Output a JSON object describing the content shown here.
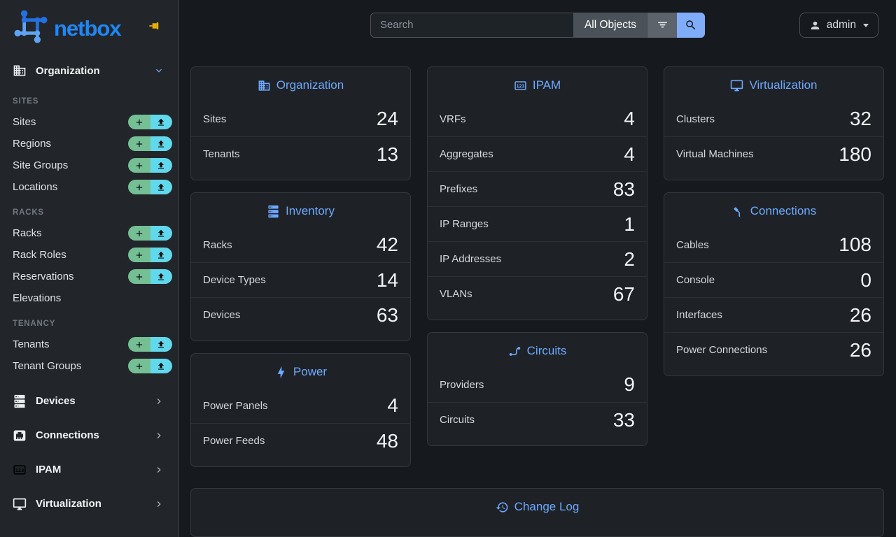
{
  "colors": {
    "accent_blue": "#6ea8fe",
    "brand_blue": "#1f87f5",
    "success_green": "#74bf93",
    "info_cyan": "#61d8ec",
    "pin_gold": "#e8b006",
    "search_button_blue": "#7fadf9"
  },
  "brand": {
    "logo_text": "netbox"
  },
  "topbar": {
    "search_placeholder": "Search",
    "scope_label": "All Objects",
    "user_label": "admin"
  },
  "sidebar": {
    "primary_menu": {
      "label": "Organization",
      "icon": "building",
      "state": "expanded"
    },
    "sections": [
      {
        "heading": "SITES",
        "items": [
          {
            "label": "Sites",
            "actions": true
          },
          {
            "label": "Regions",
            "actions": true
          },
          {
            "label": "Site Groups",
            "actions": true
          },
          {
            "label": "Locations",
            "actions": true
          }
        ]
      },
      {
        "heading": "RACKS",
        "items": [
          {
            "label": "Racks",
            "actions": true
          },
          {
            "label": "Rack Roles",
            "actions": true
          },
          {
            "label": "Reservations",
            "actions": true
          },
          {
            "label": "Elevations",
            "actions": false
          }
        ]
      },
      {
        "heading": "TENANCY",
        "items": [
          {
            "label": "Tenants",
            "actions": true
          },
          {
            "label": "Tenant Groups",
            "actions": true
          }
        ]
      }
    ],
    "collapsed_menus": [
      {
        "label": "Devices",
        "icon": "server"
      },
      {
        "label": "Connections",
        "icon": "ethernet"
      },
      {
        "label": "IPAM",
        "icon": "counter"
      },
      {
        "label": "Virtualization",
        "icon": "monitor"
      }
    ]
  },
  "dashboard": {
    "columns": [
      [
        {
          "title": "Organization",
          "icon": "building",
          "rows": [
            {
              "label": "Sites",
              "value": "24"
            },
            {
              "label": "Tenants",
              "value": "13"
            }
          ]
        },
        {
          "title": "Inventory",
          "icon": "server",
          "rows": [
            {
              "label": "Racks",
              "value": "42"
            },
            {
              "label": "Device Types",
              "value": "14"
            },
            {
              "label": "Devices",
              "value": "63"
            }
          ]
        },
        {
          "title": "Power",
          "icon": "bolt",
          "rows": [
            {
              "label": "Power Panels",
              "value": "4"
            },
            {
              "label": "Power Feeds",
              "value": "48"
            }
          ]
        }
      ],
      [
        {
          "title": "IPAM",
          "icon": "counter",
          "rows": [
            {
              "label": "VRFs",
              "value": "4"
            },
            {
              "label": "Aggregates",
              "value": "4"
            },
            {
              "label": "Prefixes",
              "value": "83"
            },
            {
              "label": "IP Ranges",
              "value": "1"
            },
            {
              "label": "IP Addresses",
              "value": "2"
            },
            {
              "label": "VLANs",
              "value": "67"
            }
          ]
        },
        {
          "title": "Circuits",
          "icon": "transit",
          "rows": [
            {
              "label": "Providers",
              "value": "9"
            },
            {
              "label": "Circuits",
              "value": "33"
            }
          ]
        }
      ],
      [
        {
          "title": "Virtualization",
          "icon": "monitor",
          "rows": [
            {
              "label": "Clusters",
              "value": "32"
            },
            {
              "label": "Virtual Machines",
              "value": "180"
            }
          ]
        },
        {
          "title": "Connections",
          "icon": "cable",
          "rows": [
            {
              "label": "Cables",
              "value": "108"
            },
            {
              "label": "Console",
              "value": "0"
            },
            {
              "label": "Interfaces",
              "value": "26"
            },
            {
              "label": "Power Connections",
              "value": "26"
            }
          ]
        }
      ]
    ],
    "changelog": {
      "title": "Change Log",
      "icon": "history"
    }
  }
}
